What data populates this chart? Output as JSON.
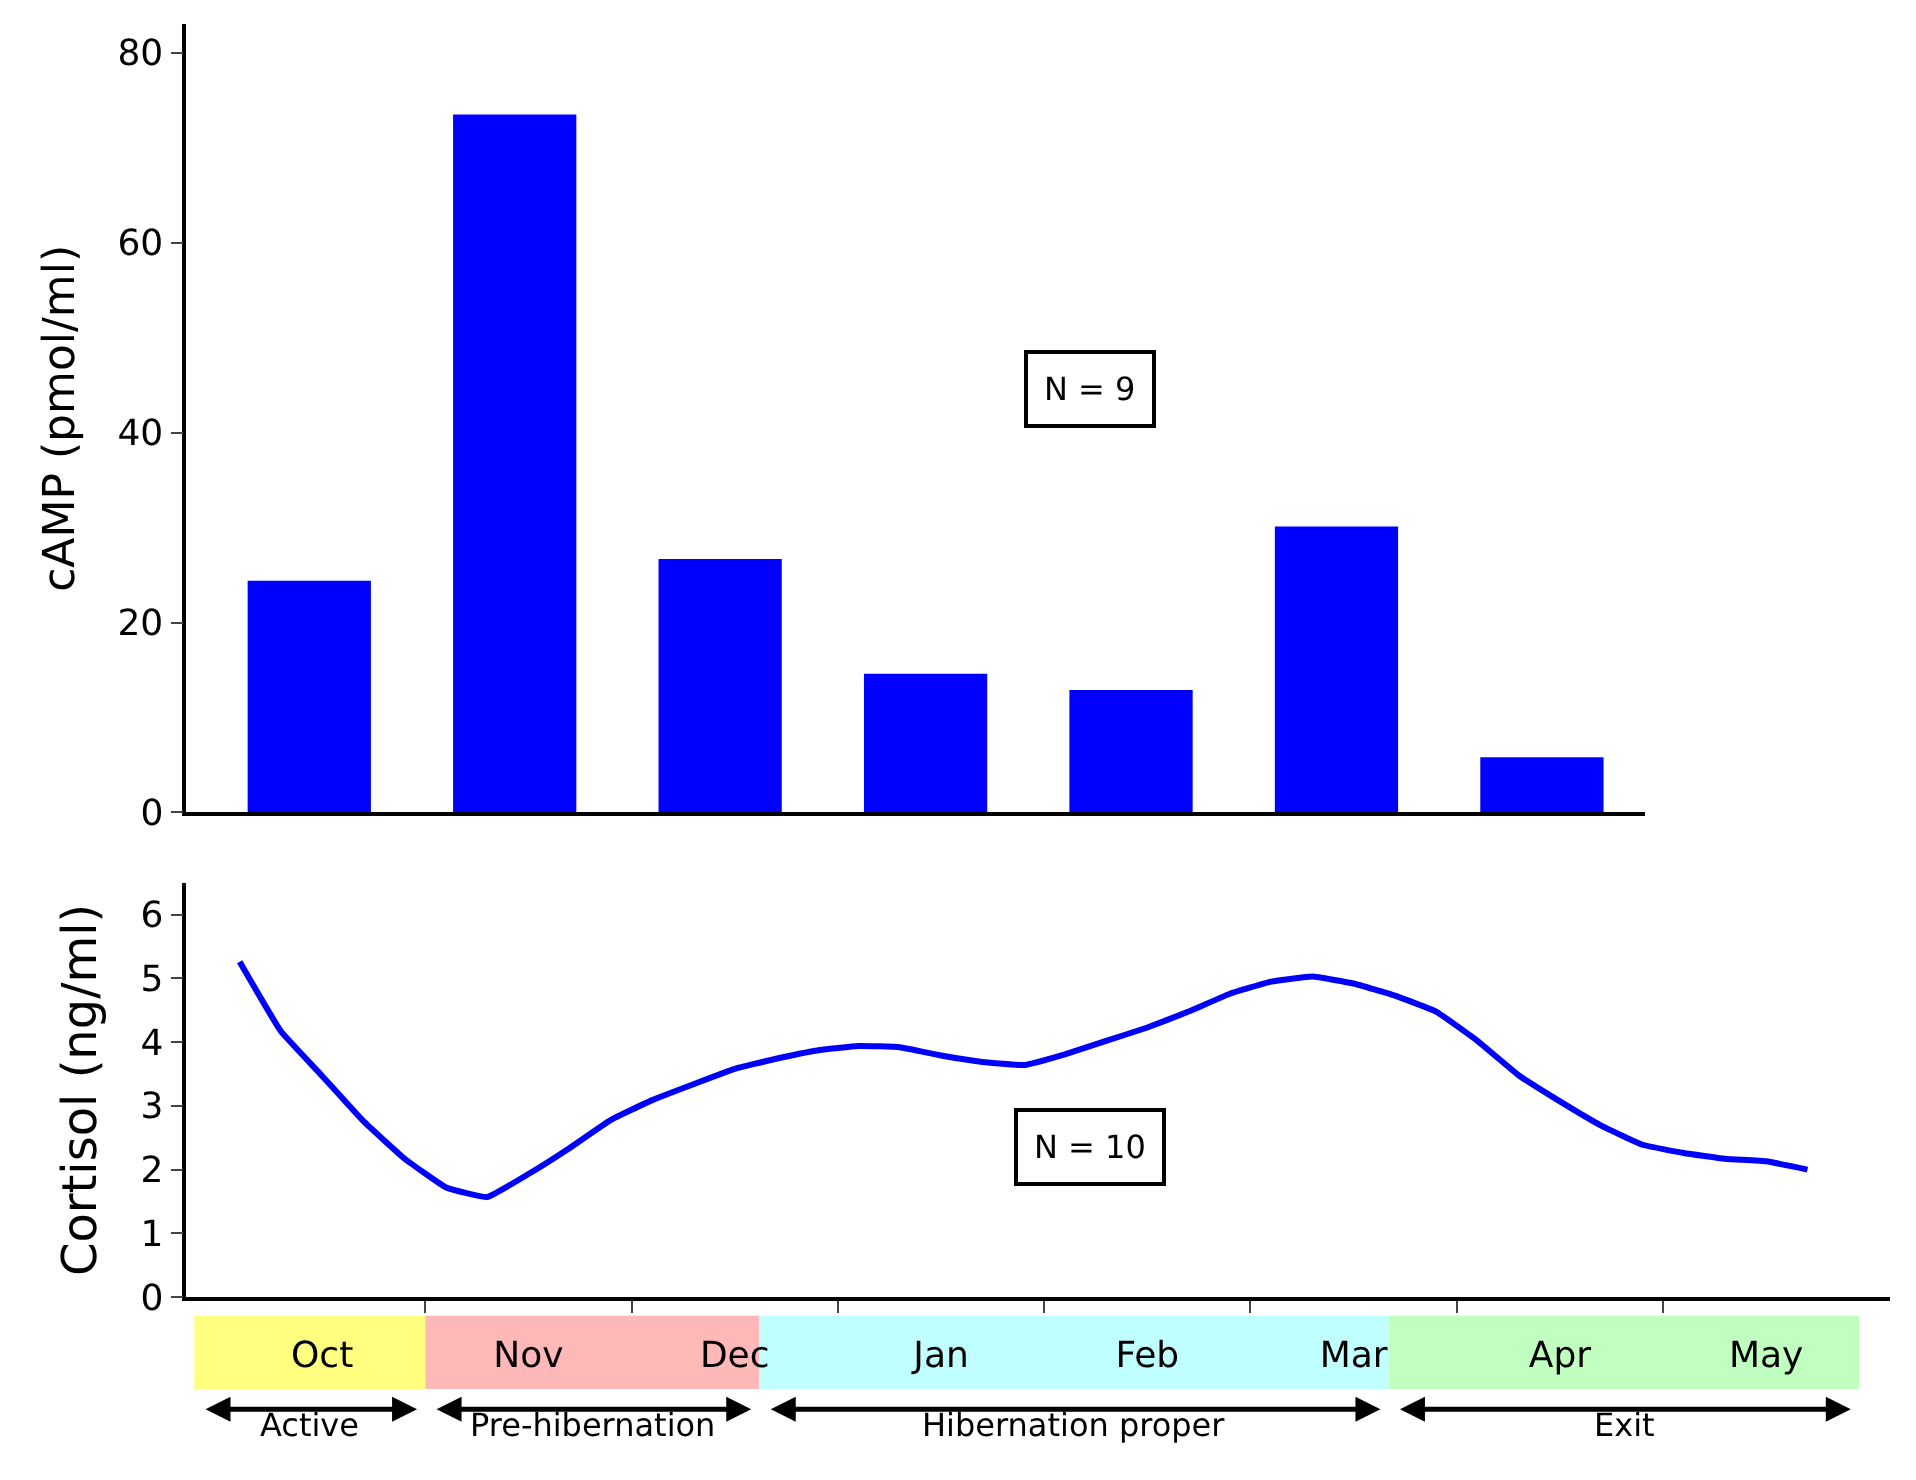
{
  "chart_data": [
    {
      "type": "bar",
      "categories": [
        null,
        null,
        null,
        null,
        null,
        null,
        null
      ],
      "values": [
        24.4,
        73.5,
        26.7,
        14.6,
        12.9,
        30.1,
        5.8
      ],
      "color": "#0000ff",
      "ylim": [
        0,
        83
      ],
      "yticks": [
        0,
        20,
        40,
        60,
        80
      ],
      "ylabel": "cAMP (pmol/ml)",
      "annotations": [
        "N = 9"
      ],
      "tick_labels": "y"
    },
    {
      "type": "line",
      "color": "#0000ff",
      "categories": [
        null,
        null,
        "Oct",
        null,
        null,
        null,
        null,
        "Nov",
        null,
        null,
        null,
        null,
        "Dec",
        null,
        null,
        null,
        null,
        "Jan",
        null,
        null,
        null,
        null,
        "Feb",
        null,
        null,
        null,
        null,
        "Mar",
        null,
        null,
        null,
        null,
        "Apr",
        null,
        null,
        null,
        null,
        "May",
        null,
        null
      ],
      "values": [
        5.26,
        4.17,
        3.47,
        2.76,
        2.17,
        1.72,
        1.57,
        1.93,
        2.34,
        2.78,
        3.09,
        3.34,
        3.58,
        3.74,
        3.87,
        3.94,
        3.92,
        3.79,
        3.69,
        3.64,
        3.81,
        4.02,
        4.23,
        4.48,
        4.76,
        4.95,
        5.03,
        4.92,
        4.73,
        4.48,
        4.02,
        3.48,
        3.07,
        2.69,
        2.39,
        2.26,
        2.17,
        2.13,
        2.0,
        null
      ],
      "ylim": [
        0,
        6.5
      ],
      "yticks": [
        0,
        1,
        2,
        3,
        4,
        5,
        6
      ],
      "ylabel": "Cortisol (ng/ml)",
      "annotations": [
        "N = 10",
        "Active",
        "Pre-hibernation",
        "Hibernation proper",
        "Exit"
      ]
    }
  ]
}
